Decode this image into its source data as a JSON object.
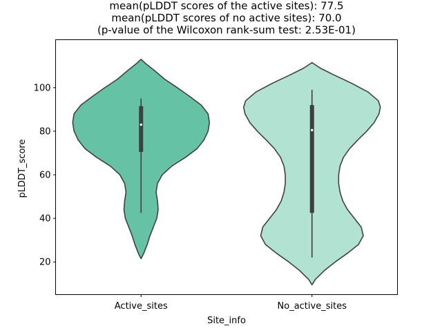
{
  "chart_data": {
    "type": "violin",
    "title_lines": [
      "mean(pLDDT scores of the active sites): 77.5",
      "mean(pLDDT scores of no active sites): 70.0",
      "(p-value of the Wilcoxon rank-sum test: 2.53E-01)"
    ],
    "xlabel": "Site_info",
    "ylabel": "pLDDT_score",
    "ylim": [
      5,
      122
    ],
    "yticks": [
      20,
      40,
      60,
      80,
      100
    ],
    "categories": [
      "Active_sites",
      "No_active_sites"
    ],
    "violins": [
      {
        "category": "Active_sites",
        "color": "#66c2a5",
        "profile": [
          [
            21.5,
            0.0
          ],
          [
            24,
            0.04
          ],
          [
            28,
            0.09
          ],
          [
            32,
            0.13
          ],
          [
            36,
            0.18
          ],
          [
            40,
            0.23
          ],
          [
            44,
            0.25
          ],
          [
            48,
            0.24
          ],
          [
            52,
            0.22
          ],
          [
            56,
            0.24
          ],
          [
            60,
            0.31
          ],
          [
            64,
            0.45
          ],
          [
            68,
            0.65
          ],
          [
            72,
            0.82
          ],
          [
            76,
            0.92
          ],
          [
            80,
            0.98
          ],
          [
            84,
            1.0
          ],
          [
            88,
            0.98
          ],
          [
            92,
            0.88
          ],
          [
            96,
            0.71
          ],
          [
            100,
            0.53
          ],
          [
            104,
            0.34
          ],
          [
            108,
            0.19
          ],
          [
            111,
            0.07
          ],
          [
            113,
            0.0
          ]
        ],
        "whisker": [
          42.5,
          95
        ],
        "iqr": [
          70.5,
          91.5
        ],
        "median": 83
      },
      {
        "category": "No_active_sites",
        "color": "#b2e2d2",
        "profile": [
          [
            9.5,
            0.0
          ],
          [
            12,
            0.05
          ],
          [
            16,
            0.18
          ],
          [
            20,
            0.34
          ],
          [
            24,
            0.52
          ],
          [
            28,
            0.68
          ],
          [
            32,
            0.75
          ],
          [
            36,
            0.72
          ],
          [
            40,
            0.62
          ],
          [
            44,
            0.52
          ],
          [
            48,
            0.45
          ],
          [
            52,
            0.41
          ],
          [
            56,
            0.39
          ],
          [
            60,
            0.39
          ],
          [
            64,
            0.41
          ],
          [
            68,
            0.46
          ],
          [
            72,
            0.55
          ],
          [
            76,
            0.67
          ],
          [
            80,
            0.8
          ],
          [
            84,
            0.91
          ],
          [
            88,
            0.98
          ],
          [
            91,
            1.0
          ],
          [
            94,
            0.97
          ],
          [
            98,
            0.82
          ],
          [
            102,
            0.58
          ],
          [
            106,
            0.31
          ],
          [
            109,
            0.12
          ],
          [
            111.5,
            0.0
          ]
        ],
        "whisker": [
          22,
          99
        ],
        "iqr": [
          42.5,
          92
        ],
        "median": 80.5
      }
    ],
    "grid": false,
    "legend": "none"
  }
}
